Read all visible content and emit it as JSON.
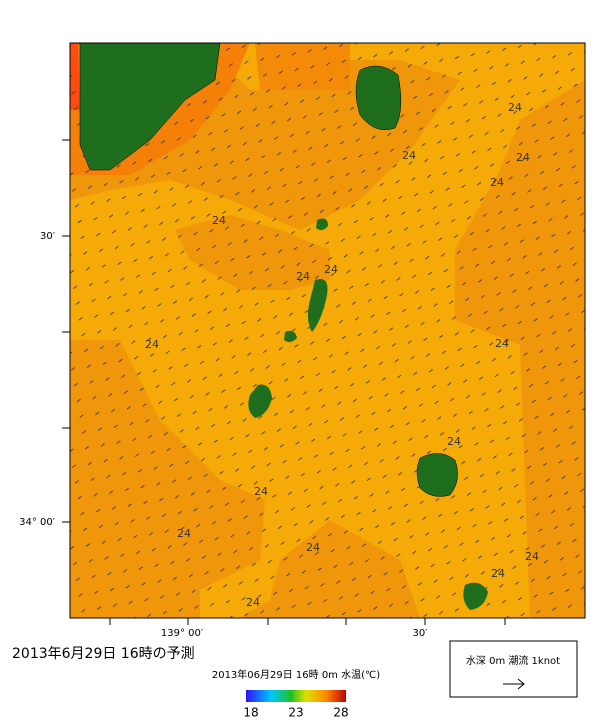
{
  "map": {
    "axis_labels": {
      "left": [
        "30′",
        "34° 00′"
      ],
      "bottom": [
        "139° 00′",
        "30′"
      ]
    },
    "contour_labels": [
      "24",
      "24",
      "24",
      "24",
      "24",
      "24",
      "24",
      "24",
      "24",
      "24",
      "24",
      "24",
      "24",
      "24",
      "24",
      "24"
    ],
    "title": "2013年6月29日  16時の予測",
    "subtitle": "2013年06月29日 16時 0m 水温(℃)",
    "colorbar_ticks": [
      "18",
      "23",
      "28"
    ],
    "legend": "水深 0m 潮流 1knot"
  }
}
